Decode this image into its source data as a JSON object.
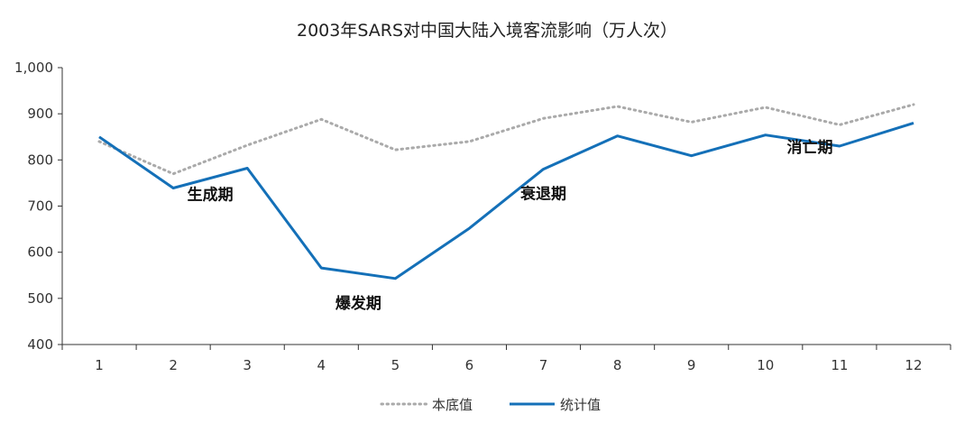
{
  "chart_data": {
    "type": "line",
    "title": "2003年SARS对中国大陆入境客流影响（万人次）",
    "x": [
      "1",
      "2",
      "3",
      "4",
      "5",
      "6",
      "7",
      "8",
      "9",
      "10",
      "11",
      "12"
    ],
    "ylim": [
      400,
      1000
    ],
    "yticks": [
      "400",
      "500",
      "600",
      "700",
      "800",
      "900",
      "1,000"
    ],
    "series": [
      {
        "name": "本底值",
        "color": "#aaaaaa",
        "style": "dotted",
        "values": [
          840,
          770,
          832,
          888,
          822,
          840,
          890,
          916,
          882,
          914,
          876,
          920
        ]
      },
      {
        "name": "统计值",
        "color": "#1470b8",
        "style": "solid",
        "values": [
          850,
          739,
          782,
          566,
          543,
          652,
          780,
          852,
          809,
          854,
          830,
          880
        ]
      }
    ],
    "annotations": [
      {
        "text": "生成期",
        "x": 2.5,
        "y": 714
      },
      {
        "text": "爆发期",
        "x": 4.5,
        "y": 478
      },
      {
        "text": "衰退期",
        "x": 7.0,
        "y": 716
      },
      {
        "text": "消亡期",
        "x": 10.6,
        "y": 816
      }
    ],
    "legend_position": "bottom-center",
    "grid": false
  }
}
